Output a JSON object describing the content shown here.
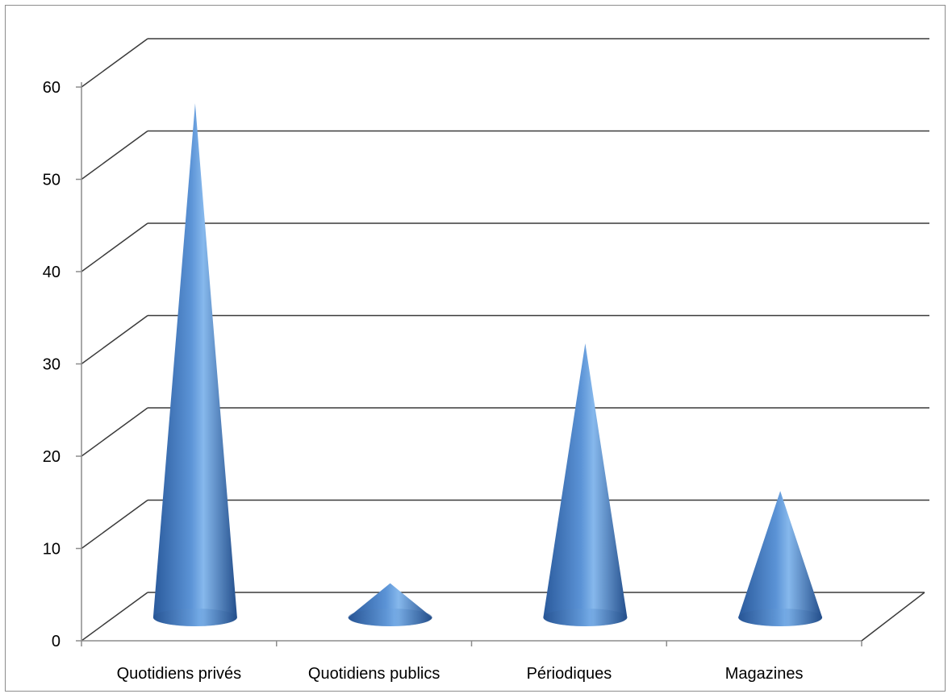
{
  "chart_data": {
    "type": "bar",
    "subtype": "3d-cone",
    "categories": [
      "Quotidiens privés",
      "Quotidiens publics",
      "Périodiques",
      "Magazines"
    ],
    "values": [
      55,
      3,
      29,
      13
    ],
    "ylim": [
      0,
      60
    ],
    "yticks": [
      "0",
      "10",
      "20",
      "30",
      "40",
      "50",
      "60"
    ],
    "grid": true,
    "legend": "none",
    "title": "",
    "xlabel": "",
    "ylabel": "",
    "colors": {
      "cone_dark": "#1f4f8f",
      "cone_mid": "#4a7fc4",
      "cone_light": "#8fbef0",
      "gridline": "#3a3a3a",
      "axis": "#8c8c8c"
    }
  }
}
